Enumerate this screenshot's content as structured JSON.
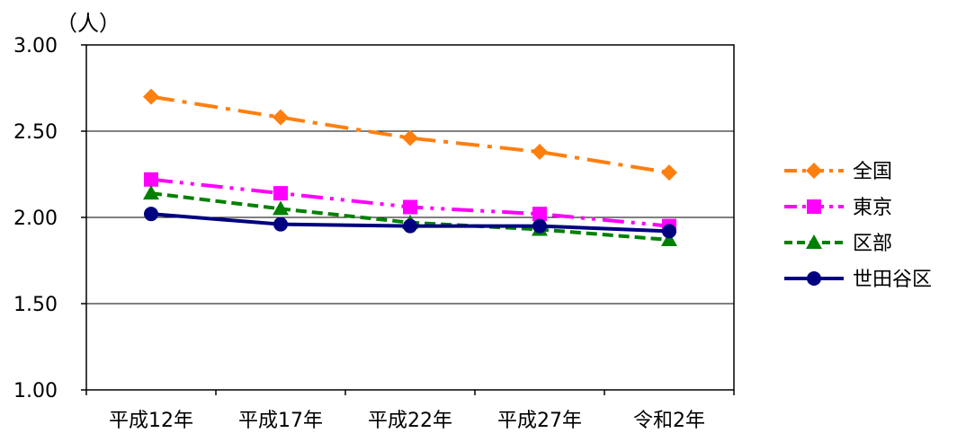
{
  "chart_data": {
    "type": "line",
    "title": "",
    "xlabel": "",
    "ylabel": "",
    "unit_label": "（人）",
    "categories": [
      "平成12年",
      "平成17年",
      "平成22年",
      "平成27年",
      "令和2年"
    ],
    "ylim": [
      1.0,
      3.0
    ],
    "yticks": [
      1.0,
      1.5,
      2.0,
      2.5,
      3.0
    ],
    "ytick_labels": [
      "1.00",
      "1.50",
      "2.00",
      "2.50",
      "3.00"
    ],
    "grid": true,
    "legend_position": "right",
    "series": [
      {
        "name": "全国",
        "values": [
          2.7,
          2.58,
          2.46,
          2.38,
          2.26
        ],
        "color": "#ff7f0e",
        "marker": "diamond",
        "line_style": "dash-dot"
      },
      {
        "name": "東京",
        "values": [
          2.22,
          2.14,
          2.06,
          2.02,
          1.95
        ],
        "color": "#ff00ff",
        "marker": "square",
        "line_style": "dash-dot-dot"
      },
      {
        "name": "区部",
        "values": [
          2.14,
          2.05,
          1.97,
          1.93,
          1.87
        ],
        "color": "#008000",
        "marker": "triangle",
        "line_style": "dashed"
      },
      {
        "name": "世田谷区",
        "values": [
          2.02,
          1.96,
          1.95,
          1.95,
          1.92
        ],
        "color": "#000080",
        "marker": "circle",
        "line_style": "solid"
      }
    ]
  }
}
